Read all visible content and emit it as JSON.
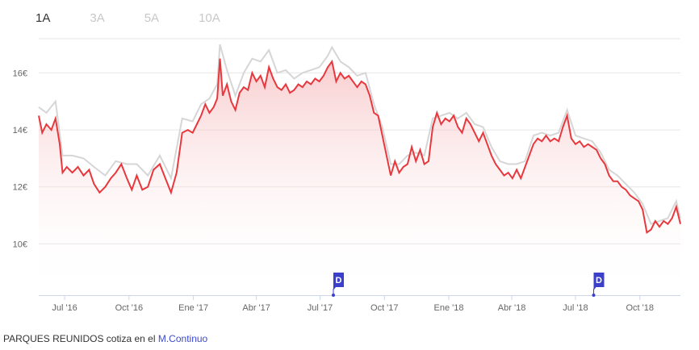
{
  "range_tabs": [
    {
      "label": "1A",
      "active": true
    },
    {
      "label": "3A",
      "active": false
    },
    {
      "label": "5A",
      "active": false
    },
    {
      "label": "10A",
      "active": false
    }
  ],
  "footer": {
    "text": "PARQUES REUNIDOS cotiza en el ",
    "link_label": "M.Continuo"
  },
  "colors": {
    "line": "#e8383d",
    "comparison_line": "#d6d6d6",
    "area_top": "#f3a3a6",
    "marker": "#3b3fc9",
    "active_tab": "#333333",
    "inactive_tab": "#c8c8c8",
    "link": "#3b4bd1"
  },
  "chart_data": {
    "type": "area",
    "title": "",
    "xlabel": "",
    "ylabel": "",
    "x_range": [
      "2016-05-25",
      "2018-11-28"
    ],
    "ylim": [
      8.2,
      17.2
    ],
    "y_ticks": [
      10,
      12,
      14,
      16
    ],
    "y_tick_labels": [
      "10€",
      "12€",
      "14€",
      "16€"
    ],
    "grid": true,
    "x_ticks": [
      {
        "date": "2016-07-01",
        "label": "Jul '16"
      },
      {
        "date": "2016-10-01",
        "label": "Oct '16"
      },
      {
        "date": "2017-01-01",
        "label": "Ene '17"
      },
      {
        "date": "2017-04-01",
        "label": "Abr '17"
      },
      {
        "date": "2017-07-01",
        "label": "Jul '17"
      },
      {
        "date": "2017-10-01",
        "label": "Oct '17"
      },
      {
        "date": "2018-01-01",
        "label": "Ene '18"
      },
      {
        "date": "2018-04-01",
        "label": "Abr '18"
      },
      {
        "date": "2018-07-01",
        "label": "Jul '18"
      },
      {
        "date": "2018-10-01",
        "label": "Oct '18"
      }
    ],
    "series": [
      {
        "kind": "price",
        "points": [
          [
            "2016-05-25",
            14.5
          ],
          [
            "2016-05-30",
            13.9
          ],
          [
            "2016-06-05",
            14.2
          ],
          [
            "2016-06-12",
            14.0
          ],
          [
            "2016-06-18",
            14.4
          ],
          [
            "2016-06-24",
            13.5
          ],
          [
            "2016-06-28",
            12.5
          ],
          [
            "2016-07-04",
            12.7
          ],
          [
            "2016-07-12",
            12.5
          ],
          [
            "2016-07-20",
            12.7
          ],
          [
            "2016-07-28",
            12.4
          ],
          [
            "2016-08-05",
            12.6
          ],
          [
            "2016-08-12",
            12.1
          ],
          [
            "2016-08-20",
            11.8
          ],
          [
            "2016-08-28",
            12.0
          ],
          [
            "2016-09-05",
            12.3
          ],
          [
            "2016-09-12",
            12.5
          ],
          [
            "2016-09-20",
            12.8
          ],
          [
            "2016-09-28",
            12.3
          ],
          [
            "2016-10-05",
            11.9
          ],
          [
            "2016-10-12",
            12.4
          ],
          [
            "2016-10-20",
            11.9
          ],
          [
            "2016-10-28",
            12.0
          ],
          [
            "2016-11-05",
            12.6
          ],
          [
            "2016-11-14",
            12.8
          ],
          [
            "2016-11-22",
            12.3
          ],
          [
            "2016-11-30",
            11.8
          ],
          [
            "2016-12-08",
            12.5
          ],
          [
            "2016-12-16",
            13.9
          ],
          [
            "2016-12-24",
            14.0
          ],
          [
            "2016-12-31",
            13.9
          ],
          [
            "2017-01-06",
            14.2
          ],
          [
            "2017-01-12",
            14.5
          ],
          [
            "2017-01-18",
            14.9
          ],
          [
            "2017-01-24",
            14.6
          ],
          [
            "2017-01-30",
            14.8
          ],
          [
            "2017-02-04",
            15.1
          ],
          [
            "2017-02-08",
            16.5
          ],
          [
            "2017-02-12",
            15.2
          ],
          [
            "2017-02-18",
            15.6
          ],
          [
            "2017-02-24",
            15.0
          ],
          [
            "2017-03-02",
            14.7
          ],
          [
            "2017-03-08",
            15.3
          ],
          [
            "2017-03-14",
            15.5
          ],
          [
            "2017-03-20",
            15.4
          ],
          [
            "2017-03-26",
            16.0
          ],
          [
            "2017-04-01",
            15.7
          ],
          [
            "2017-04-07",
            15.9
          ],
          [
            "2017-04-13",
            15.5
          ],
          [
            "2017-04-19",
            16.2
          ],
          [
            "2017-04-25",
            15.8
          ],
          [
            "2017-05-01",
            15.5
          ],
          [
            "2017-05-07",
            15.4
          ],
          [
            "2017-05-13",
            15.6
          ],
          [
            "2017-05-19",
            15.3
          ],
          [
            "2017-05-25",
            15.4
          ],
          [
            "2017-05-31",
            15.6
          ],
          [
            "2017-06-06",
            15.5
          ],
          [
            "2017-06-12",
            15.7
          ],
          [
            "2017-06-18",
            15.6
          ],
          [
            "2017-06-24",
            15.8
          ],
          [
            "2017-06-30",
            15.7
          ],
          [
            "2017-07-06",
            15.9
          ],
          [
            "2017-07-12",
            16.2
          ],
          [
            "2017-07-18",
            16.4
          ],
          [
            "2017-07-24",
            15.7
          ],
          [
            "2017-07-30",
            16.0
          ],
          [
            "2017-08-05",
            15.8
          ],
          [
            "2017-08-11",
            15.9
          ],
          [
            "2017-08-17",
            15.7
          ],
          [
            "2017-08-23",
            15.5
          ],
          [
            "2017-08-29",
            15.7
          ],
          [
            "2017-09-04",
            15.6
          ],
          [
            "2017-09-10",
            15.2
          ],
          [
            "2017-09-16",
            14.6
          ],
          [
            "2017-09-22",
            14.5
          ],
          [
            "2017-09-28",
            13.8
          ],
          [
            "2017-10-04",
            13.1
          ],
          [
            "2017-10-10",
            12.4
          ],
          [
            "2017-10-16",
            12.9
          ],
          [
            "2017-10-22",
            12.5
          ],
          [
            "2017-10-28",
            12.7
          ],
          [
            "2017-11-03",
            12.8
          ],
          [
            "2017-11-09",
            13.4
          ],
          [
            "2017-11-15",
            12.9
          ],
          [
            "2017-11-21",
            13.3
          ],
          [
            "2017-11-27",
            12.8
          ],
          [
            "2017-12-03",
            12.9
          ],
          [
            "2017-12-09",
            14.1
          ],
          [
            "2017-12-15",
            14.6
          ],
          [
            "2017-12-21",
            14.2
          ],
          [
            "2017-12-27",
            14.4
          ],
          [
            "2018-01-02",
            14.3
          ],
          [
            "2018-01-08",
            14.5
          ],
          [
            "2018-01-14",
            14.1
          ],
          [
            "2018-01-20",
            13.9
          ],
          [
            "2018-01-26",
            14.4
          ],
          [
            "2018-02-01",
            14.2
          ],
          [
            "2018-02-07",
            13.9
          ],
          [
            "2018-02-13",
            13.6
          ],
          [
            "2018-02-19",
            13.9
          ],
          [
            "2018-02-25",
            13.5
          ],
          [
            "2018-03-03",
            13.1
          ],
          [
            "2018-03-09",
            12.8
          ],
          [
            "2018-03-15",
            12.6
          ],
          [
            "2018-03-21",
            12.4
          ],
          [
            "2018-03-27",
            12.5
          ],
          [
            "2018-04-02",
            12.3
          ],
          [
            "2018-04-08",
            12.6
          ],
          [
            "2018-04-14",
            12.3
          ],
          [
            "2018-04-20",
            12.7
          ],
          [
            "2018-04-26",
            13.1
          ],
          [
            "2018-05-02",
            13.5
          ],
          [
            "2018-05-08",
            13.7
          ],
          [
            "2018-05-14",
            13.6
          ],
          [
            "2018-05-20",
            13.8
          ],
          [
            "2018-05-26",
            13.6
          ],
          [
            "2018-06-01",
            13.7
          ],
          [
            "2018-06-07",
            13.6
          ],
          [
            "2018-06-13",
            14.1
          ],
          [
            "2018-06-19",
            14.5
          ],
          [
            "2018-06-25",
            13.7
          ],
          [
            "2018-07-01",
            13.5
          ],
          [
            "2018-07-07",
            13.6
          ],
          [
            "2018-07-13",
            13.4
          ],
          [
            "2018-07-19",
            13.5
          ],
          [
            "2018-07-25",
            13.4
          ],
          [
            "2018-07-31",
            13.3
          ],
          [
            "2018-08-06",
            13.0
          ],
          [
            "2018-08-12",
            12.8
          ],
          [
            "2018-08-18",
            12.4
          ],
          [
            "2018-08-24",
            12.2
          ],
          [
            "2018-08-30",
            12.2
          ],
          [
            "2018-09-05",
            12.0
          ],
          [
            "2018-09-11",
            11.9
          ],
          [
            "2018-09-17",
            11.7
          ],
          [
            "2018-09-23",
            11.6
          ],
          [
            "2018-09-29",
            11.5
          ],
          [
            "2018-10-05",
            11.2
          ],
          [
            "2018-10-11",
            10.4
          ],
          [
            "2018-10-17",
            10.5
          ],
          [
            "2018-10-23",
            10.8
          ],
          [
            "2018-10-29",
            10.6
          ],
          [
            "2018-11-04",
            10.8
          ],
          [
            "2018-11-10",
            10.7
          ],
          [
            "2018-11-16",
            10.9
          ],
          [
            "2018-11-22",
            11.3
          ],
          [
            "2018-11-28",
            10.7
          ]
        ]
      },
      {
        "kind": "comparison",
        "points": [
          [
            "2016-05-25",
            14.8
          ],
          [
            "2016-06-05",
            14.6
          ],
          [
            "2016-06-18",
            15.0
          ],
          [
            "2016-06-28",
            13.1
          ],
          [
            "2016-07-12",
            13.1
          ],
          [
            "2016-07-28",
            13.0
          ],
          [
            "2016-08-12",
            12.7
          ],
          [
            "2016-08-28",
            12.4
          ],
          [
            "2016-09-12",
            12.9
          ],
          [
            "2016-09-28",
            12.8
          ],
          [
            "2016-10-12",
            12.8
          ],
          [
            "2016-10-28",
            12.4
          ],
          [
            "2016-11-14",
            13.1
          ],
          [
            "2016-11-30",
            12.3
          ],
          [
            "2016-12-16",
            14.4
          ],
          [
            "2016-12-31",
            14.3
          ],
          [
            "2017-01-12",
            14.9
          ],
          [
            "2017-01-24",
            15.1
          ],
          [
            "2017-02-04",
            15.6
          ],
          [
            "2017-02-08",
            17.0
          ],
          [
            "2017-02-18",
            16.1
          ],
          [
            "2017-03-02",
            15.2
          ],
          [
            "2017-03-14",
            16.0
          ],
          [
            "2017-03-26",
            16.5
          ],
          [
            "2017-04-07",
            16.4
          ],
          [
            "2017-04-19",
            16.8
          ],
          [
            "2017-05-01",
            16.0
          ],
          [
            "2017-05-13",
            16.1
          ],
          [
            "2017-05-25",
            15.8
          ],
          [
            "2017-06-06",
            16.0
          ],
          [
            "2017-06-18",
            16.1
          ],
          [
            "2017-06-30",
            16.2
          ],
          [
            "2017-07-12",
            16.6
          ],
          [
            "2017-07-18",
            16.9
          ],
          [
            "2017-07-30",
            16.4
          ],
          [
            "2017-08-11",
            16.2
          ],
          [
            "2017-08-23",
            15.9
          ],
          [
            "2017-09-04",
            16.0
          ],
          [
            "2017-09-16",
            14.9
          ],
          [
            "2017-09-28",
            14.1
          ],
          [
            "2017-10-10",
            12.8
          ],
          [
            "2017-10-22",
            12.8
          ],
          [
            "2017-11-03",
            13.1
          ],
          [
            "2017-11-15",
            13.2
          ],
          [
            "2017-11-27",
            13.1
          ],
          [
            "2017-12-09",
            14.4
          ],
          [
            "2017-12-21",
            14.5
          ],
          [
            "2018-01-02",
            14.6
          ],
          [
            "2018-01-14",
            14.4
          ],
          [
            "2018-01-26",
            14.6
          ],
          [
            "2018-02-07",
            14.2
          ],
          [
            "2018-02-19",
            14.1
          ],
          [
            "2018-03-03",
            13.4
          ],
          [
            "2018-03-15",
            12.9
          ],
          [
            "2018-03-27",
            12.8
          ],
          [
            "2018-04-08",
            12.8
          ],
          [
            "2018-04-20",
            12.9
          ],
          [
            "2018-05-02",
            13.8
          ],
          [
            "2018-05-14",
            13.9
          ],
          [
            "2018-05-26",
            13.8
          ],
          [
            "2018-06-07",
            13.9
          ],
          [
            "2018-06-19",
            14.7
          ],
          [
            "2018-07-01",
            13.8
          ],
          [
            "2018-07-13",
            13.7
          ],
          [
            "2018-07-25",
            13.6
          ],
          [
            "2018-08-06",
            13.2
          ],
          [
            "2018-08-18",
            12.6
          ],
          [
            "2018-08-30",
            12.4
          ],
          [
            "2018-09-11",
            12.1
          ],
          [
            "2018-09-23",
            11.8
          ],
          [
            "2018-10-05",
            11.4
          ],
          [
            "2018-10-17",
            10.7
          ],
          [
            "2018-10-29",
            10.8
          ],
          [
            "2018-11-10",
            10.9
          ],
          [
            "2018-11-22",
            11.5
          ],
          [
            "2018-11-28",
            10.9
          ]
        ]
      }
    ],
    "dividend_markers": [
      {
        "date": "2017-07-20",
        "label": "D"
      },
      {
        "date": "2018-07-27",
        "label": "D"
      }
    ]
  }
}
